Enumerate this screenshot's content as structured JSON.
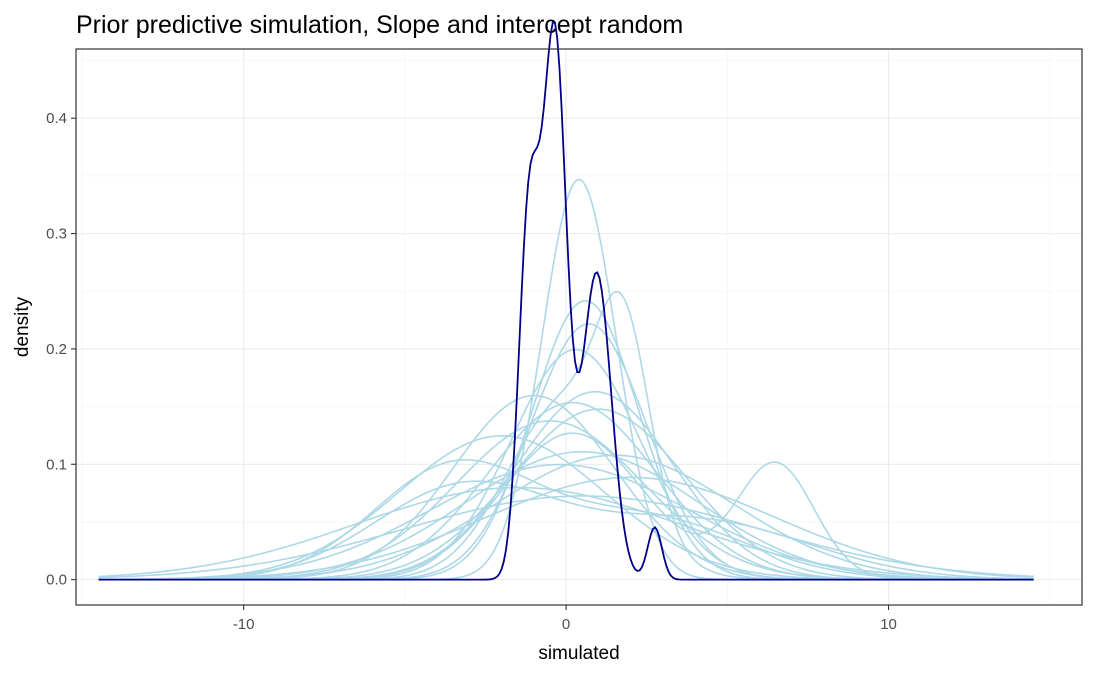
{
  "chart_data": {
    "type": "line",
    "title": "Prior predictive simulation, Slope and intercept random",
    "xlabel": "simulated",
    "ylabel": "density",
    "xlim": [
      -15.2,
      16
    ],
    "ylim": [
      -0.022,
      0.46
    ],
    "x_ticks": [
      -10,
      0,
      10
    ],
    "x_tick_labels": [
      "-10",
      "0",
      "10"
    ],
    "x_minor_ticks": [
      -15,
      -5,
      5,
      15
    ],
    "y_ticks": [
      0.0,
      0.1,
      0.2,
      0.3,
      0.4
    ],
    "y_tick_labels": [
      "0.0",
      "0.1",
      "0.2",
      "0.3",
      "0.4"
    ],
    "y_minor_ticks": [
      0.05,
      0.15,
      0.25,
      0.35,
      0.45
    ],
    "grid": true,
    "legend": "none",
    "colors": {
      "simulated": "#add8e6",
      "observed": "#00008b"
    },
    "x_range": [
      -14.5,
      14.5
    ],
    "simulated_series": [
      {
        "components": [
          [
            1.0,
            0.4,
            1.15
          ]
        ]
      },
      {
        "components": [
          [
            1.0,
            0.6,
            1.65
          ]
        ]
      },
      {
        "components": [
          [
            1.0,
            0.3,
            2.0
          ]
        ]
      },
      {
        "components": [
          [
            1.0,
            0.7,
            1.8
          ]
        ]
      },
      {
        "components": [
          [
            0.7,
            0.0,
            1.8
          ],
          [
            0.3,
            1.8,
            0.8
          ]
        ]
      },
      {
        "components": [
          [
            1.0,
            0.9,
            2.45
          ]
        ]
      },
      {
        "components": [
          [
            1.0,
            0.2,
            2.6
          ]
        ]
      },
      {
        "components": [
          [
            1.0,
            1.0,
            2.7
          ]
        ]
      },
      {
        "components": [
          [
            1.0,
            -0.5,
            2.9
          ]
        ]
      },
      {
        "components": [
          [
            1.0,
            -1.0,
            2.5
          ]
        ]
      },
      {
        "components": [
          [
            1.0,
            0.5,
            3.6
          ]
        ]
      },
      {
        "components": [
          [
            1.0,
            1.5,
            3.7
          ]
        ]
      },
      {
        "components": [
          [
            1.0,
            -0.2,
            4.0
          ]
        ]
      },
      {
        "components": [
          [
            1.0,
            -1.5,
            5.0
          ]
        ]
      },
      {
        "components": [
          [
            1.0,
            0.5,
            5.5
          ]
        ]
      },
      {
        "components": [
          [
            0.6,
            -3.5,
            2.5
          ],
          [
            0.4,
            2.5,
            3.0
          ]
        ]
      },
      {
        "components": [
          [
            0.55,
            -3.2,
            2.8
          ],
          [
            0.45,
            4.0,
            3.5
          ]
        ]
      },
      {
        "components": [
          [
            0.7,
            0.2,
            2.2
          ],
          [
            0.3,
            6.5,
            1.2
          ]
        ]
      },
      {
        "components": [
          [
            1.0,
            2.0,
            4.5
          ]
        ]
      },
      {
        "components": [
          [
            1.0,
            -2.0,
            3.2
          ]
        ]
      }
    ],
    "observed_series": {
      "components": [
        [
          0.42,
          -0.35,
          0.36
        ],
        [
          0.25,
          -1.15,
          0.32
        ],
        [
          0.3,
          0.95,
          0.45
        ],
        [
          0.025,
          2.75,
          0.22
        ]
      ]
    }
  }
}
